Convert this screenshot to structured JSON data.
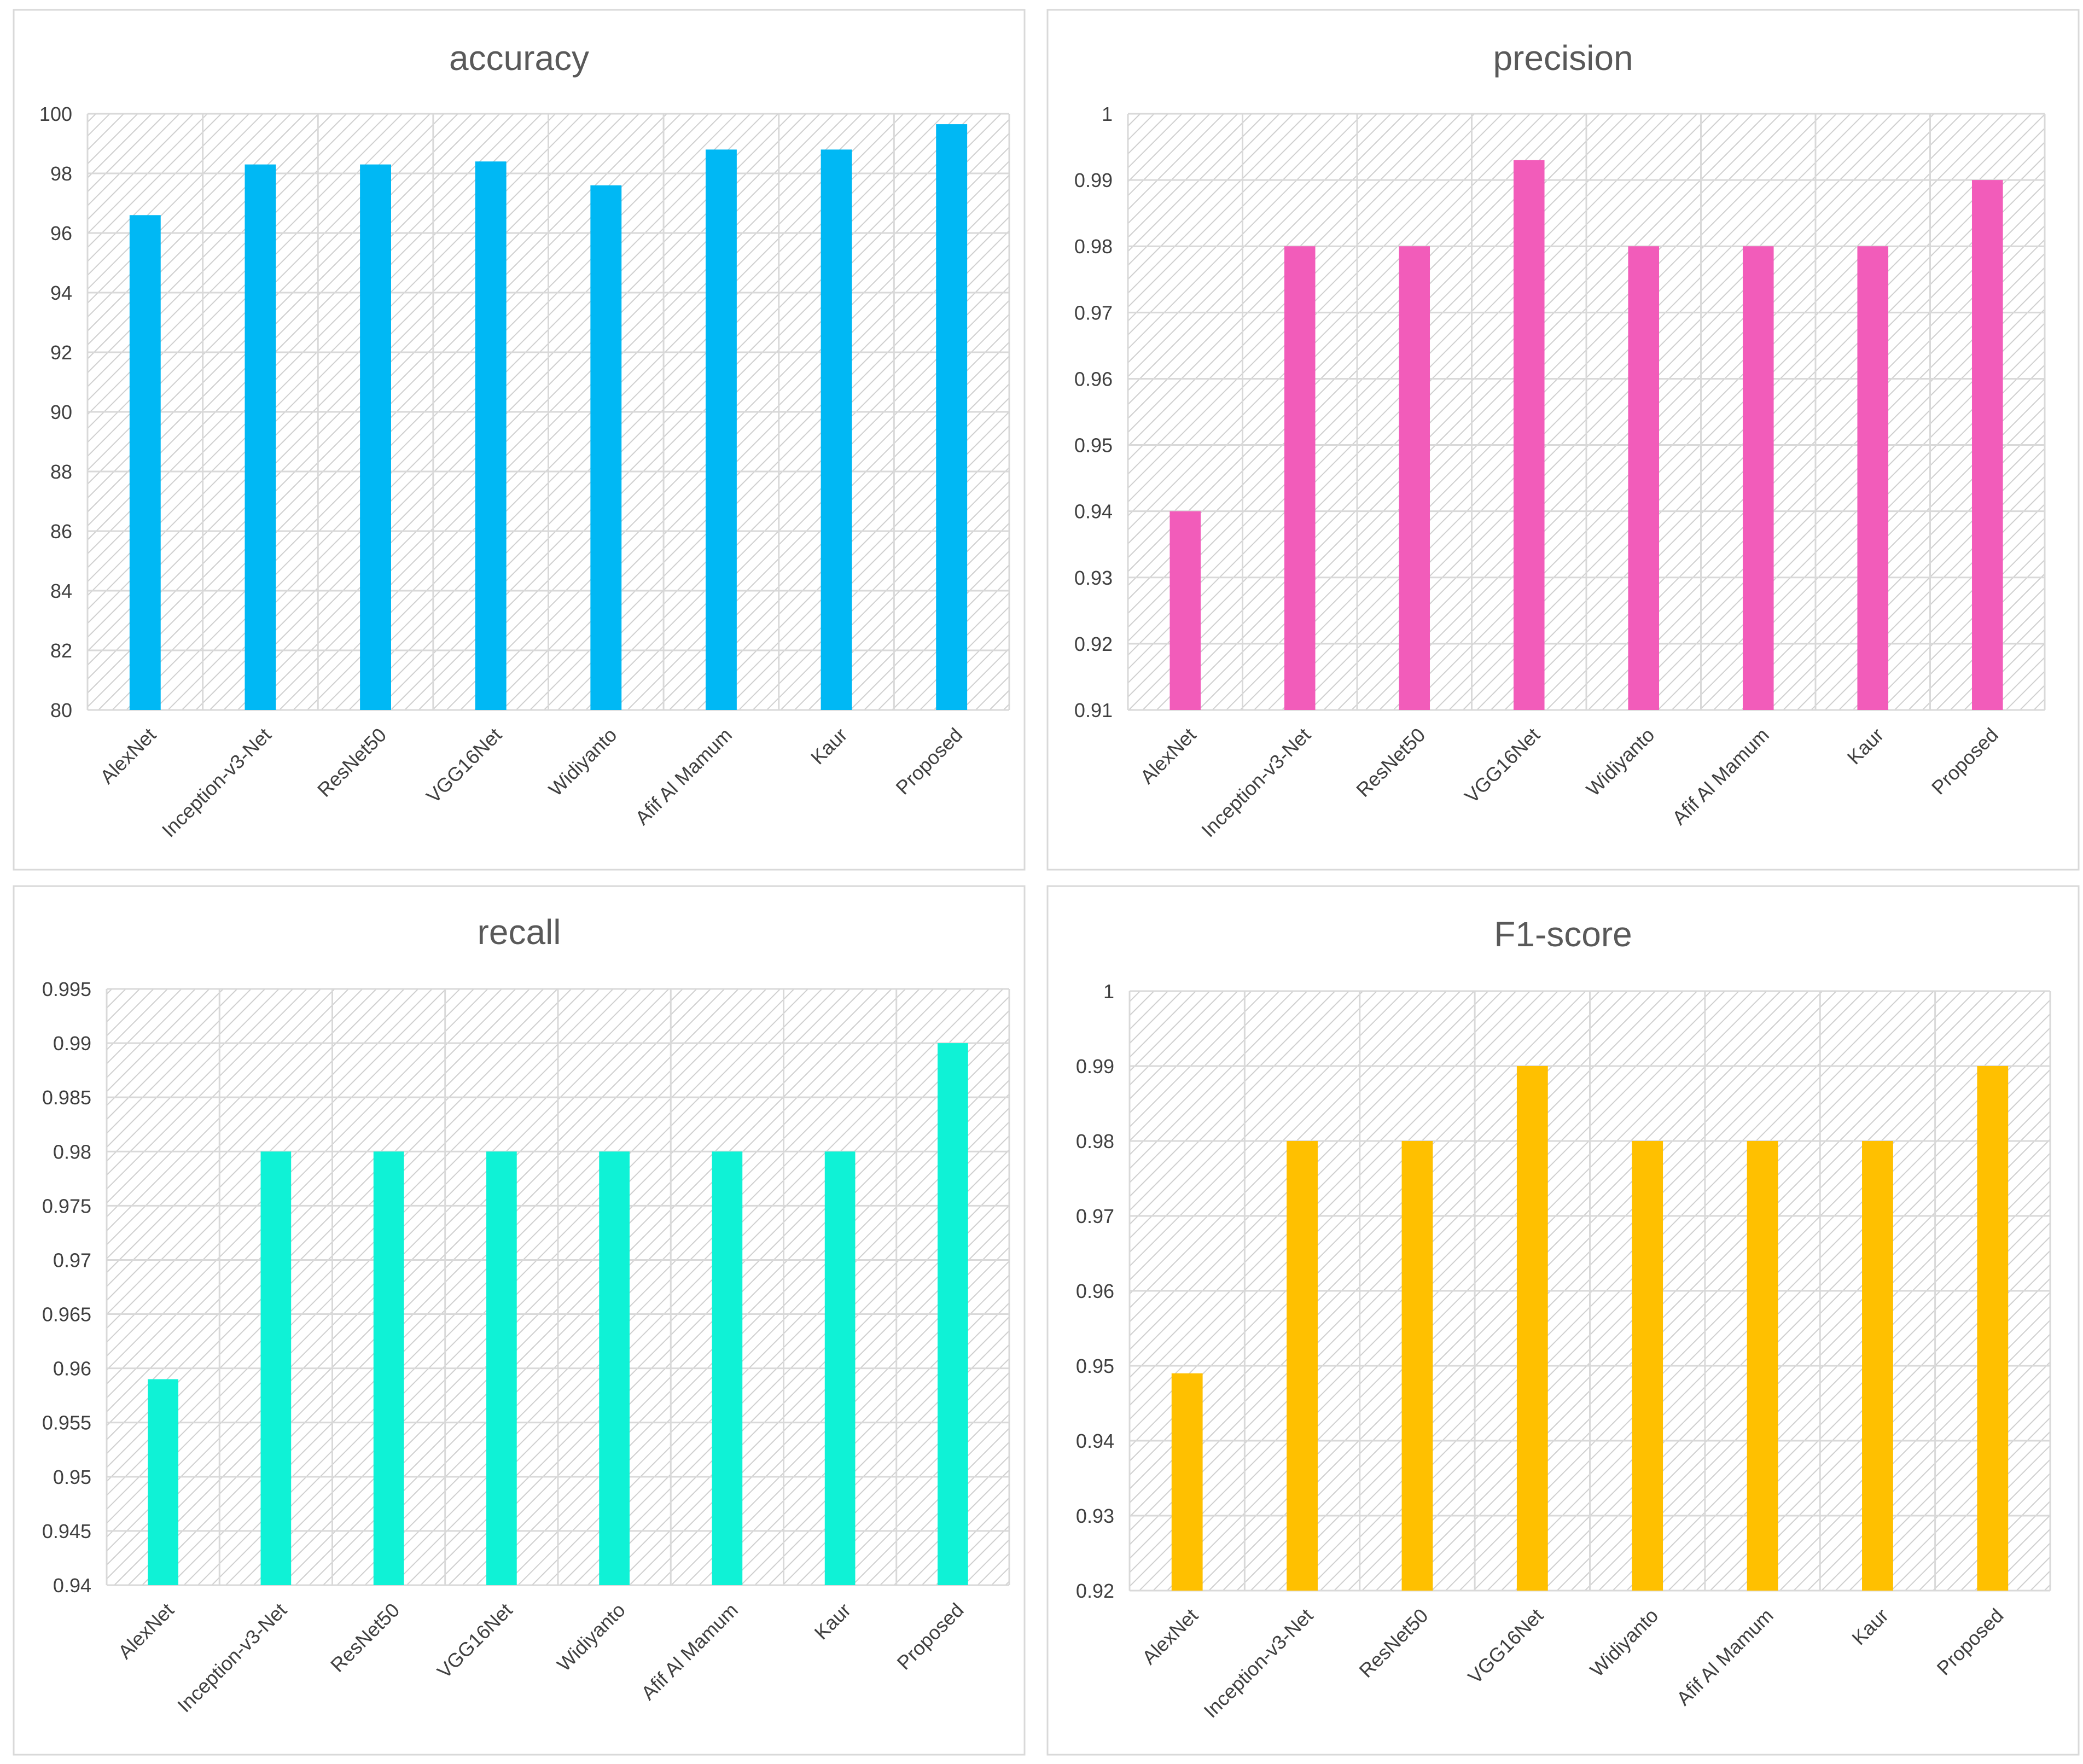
{
  "chart_data": [
    {
      "type": "bar",
      "title": "accuracy",
      "categories": [
        "AlexNet",
        "Inception-v3-Net",
        "ResNet50",
        "VGG16Net",
        "Widiyanto",
        "Afif Al Mamum",
        "Kaur",
        "Proposed"
      ],
      "values": [
        96.6,
        98.3,
        98.3,
        98.4,
        97.6,
        98.8,
        98.8,
        99.65
      ],
      "ylim": [
        80,
        100
      ],
      "yticks": [
        "80",
        "82",
        "84",
        "86",
        "88",
        "90",
        "92",
        "94",
        "96",
        "98",
        "100"
      ],
      "color": "#00B8F4",
      "grid": true
    },
    {
      "type": "bar",
      "title": "precision",
      "categories": [
        "AlexNet",
        "Inception-v3-Net",
        "ResNet50",
        "VGG16Net",
        "Widiyanto",
        "Afif Al Mamum",
        "Kaur",
        "Proposed"
      ],
      "values": [
        0.94,
        0.98,
        0.98,
        0.993,
        0.98,
        0.98,
        0.98,
        0.99
      ],
      "ylim": [
        0.91,
        1
      ],
      "yticks": [
        "0.91",
        "0.92",
        "0.93",
        "0.94",
        "0.95",
        "0.96",
        "0.97",
        "0.98",
        "0.99",
        "1"
      ],
      "color": "#F25CBA",
      "grid": true
    },
    {
      "type": "bar",
      "title": "recall",
      "categories": [
        "AlexNet",
        "Inception-v3-Net",
        "ResNet50",
        "VGG16Net",
        "Widiyanto",
        "Afif Al Mamum",
        "Kaur",
        "Proposed"
      ],
      "values": [
        0.959,
        0.98,
        0.98,
        0.98,
        0.98,
        0.98,
        0.98,
        0.99
      ],
      "ylim": [
        0.94,
        0.995
      ],
      "yticks": [
        "0.94",
        "0.945",
        "0.95",
        "0.955",
        "0.96",
        "0.965",
        "0.97",
        "0.975",
        "0.98",
        "0.985",
        "0.99",
        "0.995"
      ],
      "color": "#0FF2D6",
      "grid": true
    },
    {
      "type": "bar",
      "title": "F1-score",
      "categories": [
        "AlexNet",
        "Inception-v3-Net",
        "ResNet50",
        "VGG16Net",
        "Widiyanto",
        "Afif Al Mamum",
        "Kaur",
        "Proposed"
      ],
      "values": [
        0.949,
        0.98,
        0.98,
        0.99,
        0.98,
        0.98,
        0.98,
        0.99
      ],
      "ylim": [
        0.92,
        1
      ],
      "yticks": [
        "0.92",
        "0.93",
        "0.94",
        "0.95",
        "0.96",
        "0.97",
        "0.98",
        "0.99",
        "1"
      ],
      "color": "#FFC000",
      "grid": true
    }
  ]
}
